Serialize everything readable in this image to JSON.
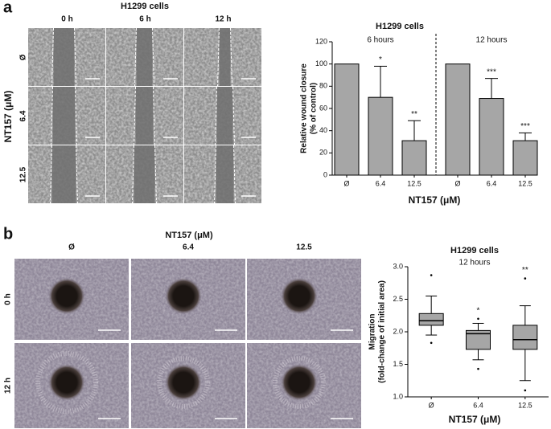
{
  "figure": {
    "panel_a": {
      "label": "a",
      "title": "H1299 cells",
      "columns": [
        "0 h",
        "6 h",
        "12 h"
      ],
      "rows": [
        "Ø",
        "6.4",
        "12.5"
      ],
      "row_axis_label": "NT157 (μM)"
    },
    "panel_b": {
      "label": "b",
      "title": "NT157 (μM)",
      "columns": [
        "Ø",
        "6.4",
        "12.5"
      ],
      "rows": [
        "0 h",
        "12 h"
      ]
    }
  },
  "chart_data": [
    {
      "type": "bar",
      "title": "H1299 cells",
      "groups": [
        "6 hours",
        "12 hours"
      ],
      "y_label": [
        "Relative wound closure",
        "(% of control)"
      ],
      "x_label": "NT157 (μM)",
      "categories": [
        "Ø",
        "6.4",
        "12.5",
        "Ø",
        "6.4",
        "12.5"
      ],
      "values": [
        100,
        70,
        31,
        100,
        69,
        31
      ],
      "errors": [
        null,
        28,
        18,
        null,
        18,
        7
      ],
      "significance": [
        null,
        "*",
        "**",
        null,
        "***",
        "***"
      ],
      "color": "#a6a6a6",
      "ylim": [
        0,
        120
      ],
      "yticks": [
        0,
        20,
        40,
        60,
        80,
        100,
        120
      ]
    },
    {
      "type": "box",
      "title": "H1299 cells",
      "subtitle": "12 hours",
      "y_label": [
        "Migration",
        "(fold-change of initial area)"
      ],
      "x_label": "NT157 (μM)",
      "categories": [
        "Ø",
        "6.4",
        "12.5"
      ],
      "boxes": [
        {
          "whisker_low": 1.95,
          "q1": 2.1,
          "median": 2.17,
          "q3": 2.28,
          "whisker_high": 2.55,
          "outliers": [
            2.87,
            1.83
          ]
        },
        {
          "whisker_low": 1.57,
          "q1": 1.73,
          "median": 1.97,
          "q3": 2.02,
          "whisker_high": 2.13,
          "outliers": [
            2.2,
            1.43
          ]
        },
        {
          "whisker_low": 1.25,
          "q1": 1.73,
          "median": 1.88,
          "q3": 2.1,
          "whisker_high": 2.4,
          "outliers": [
            2.82,
            1.1
          ]
        }
      ],
      "significance": [
        null,
        "*",
        "**"
      ],
      "color": "#a6a6a6",
      "ylim": [
        1,
        3
      ],
      "yticks": [
        {
          "value": 1,
          "label": "1.0"
        },
        {
          "value": 1.5,
          "label": "1.5"
        },
        {
          "value": 2,
          "label": "2.0"
        },
        {
          "value": 2.5,
          "label": "2.5"
        },
        {
          "value": 3,
          "label": "3.0"
        }
      ]
    }
  ]
}
